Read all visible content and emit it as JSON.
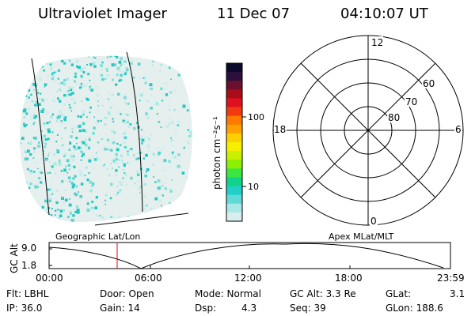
{
  "header": {
    "instrument": "Ultraviolet Imager",
    "date": "11 Dec 07",
    "time": "04:10:07 UT"
  },
  "colorbar": {
    "unit_label": "photon cm⁻²s⁻¹",
    "ticks": [
      "100",
      "10"
    ],
    "colors": [
      "#0b0a2a",
      "#2d0f3d",
      "#6b0f2e",
      "#a80d1a",
      "#e0101f",
      "#f23a10",
      "#ff7a00",
      "#ffa000",
      "#ffd000",
      "#f5f000",
      "#c8f000",
      "#8cf000",
      "#3ce640",
      "#10d48c",
      "#20cfc8",
      "#5fdad6",
      "#a8e8e6",
      "#d8eeee"
    ]
  },
  "polar_plot": {
    "mlt_labels": {
      "top": "12",
      "right": "6",
      "bottom": "0",
      "left": "18"
    },
    "lat_labels": [
      "60",
      "70",
      "80"
    ]
  },
  "altitude_plot": {
    "ylabel": "GC Alt",
    "yticks": [
      "9.0",
      "1.8"
    ],
    "left_title": "Geographic Lat/Lon",
    "right_title": "Apex MLat/MLT",
    "xticks": [
      "00:00",
      "06:00",
      "12:00",
      "18:00",
      "23:59"
    ],
    "marker_color": "#e00000"
  },
  "info": {
    "flt": "Flt: LBHL",
    "ip": "IP: 36.0",
    "door": "Door: Open",
    "gain": "Gain: 14",
    "mode": "Mode: Normal",
    "dsp_label": "Dsp:",
    "dsp_value": "4.3",
    "gc_alt": "GC Alt: 3.3 Re",
    "seq": "Seq: 39",
    "glat_label": "GLat:",
    "glat_value": "3.1",
    "glon": "GLon: 188.6"
  }
}
